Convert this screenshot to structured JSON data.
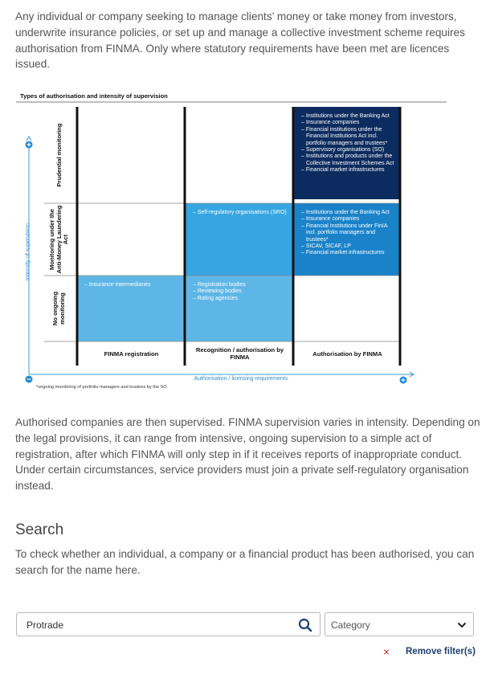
{
  "intro": "Any individual or company seeking to manage clients’ money or take money from investors, underwrite insurance policies, or set up and manage a collective investment scheme requires authorisation from FINMA. Only where statutory requirements have been met are licences issued.",
  "diagram": {
    "title": "Types of authorisation and intensity of supervision",
    "y_axis_label": "Intensity of supervision",
    "x_axis_label": "Authorisation / licensing requirements",
    "rows": [
      "Prudential monitoring",
      "Monitoring under the Anti-Money Laundering Act",
      "No ongoing monitoring"
    ],
    "columns": [
      "FINMA registration",
      "Recognition / authorisation by FINMA",
      "Authorisation by FINMA"
    ],
    "cells": {
      "registration_none": [
        "– Insurance intermediaries"
      ],
      "recognition_aml": [
        "– Self-regulatory organisations (SRO)"
      ],
      "recognition_none": [
        "– Registration bodies",
        "– Reviewing bodies",
        "– Rating agencies"
      ],
      "authorisation_prudential": [
        "– Institutions under the Banking Act",
        "– Insurance companies",
        "– Financial institutions under the Financial Institutions Act incl. portfolio managers and trustees*",
        "– Supervisory organisations (SO)",
        "– Institutions and products under the Collective Investment Schemes Act",
        "– Financial market infrastructures"
      ],
      "authorisation_aml": [
        "– Institutions under the Banking Act",
        "– Insurance companies",
        "– Financial Institutions under FinIA incl. portfolio managers and trustees*",
        "– SICAV, SICAF, LP",
        "– Financial market infrastructures"
      ]
    },
    "footnote": "*ongoing monitoring of portfolio managers and trustees by the SO"
  },
  "supervision_text": "Authorised companies are then supervised. FINMA supervision varies in intensity. Depending on the legal provisions, it can range from intensive, ongoing supervision to a simple act of registration, after which FINMA will only step in if it receives reports of inappropriate conduct. Under certain circumstances, service providers must join a private self-regulatory organisation instead.",
  "search": {
    "heading": "Search",
    "description": "To check whether an individual, a company or a financial product has been authorised, you can search for the name here.",
    "query": "Protrade",
    "category_placeholder": "Category",
    "remove_icon": "×",
    "remove_filters": "Remove filter(s)"
  }
}
